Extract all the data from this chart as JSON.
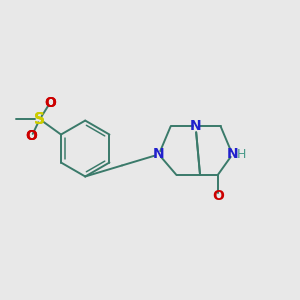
{
  "background_color": "#e8e8e8",
  "bond_color": "#3a7a6a",
  "n_color": "#2020cc",
  "o_color": "#cc0000",
  "s_color": "#cccc00",
  "h_color": "#4a9a8a",
  "linewidth": 1.4,
  "figsize": [
    3.0,
    3.0
  ],
  "dpi": 100,
  "xlim": [
    0.0,
    10.0
  ],
  "ylim": [
    1.5,
    8.5
  ]
}
